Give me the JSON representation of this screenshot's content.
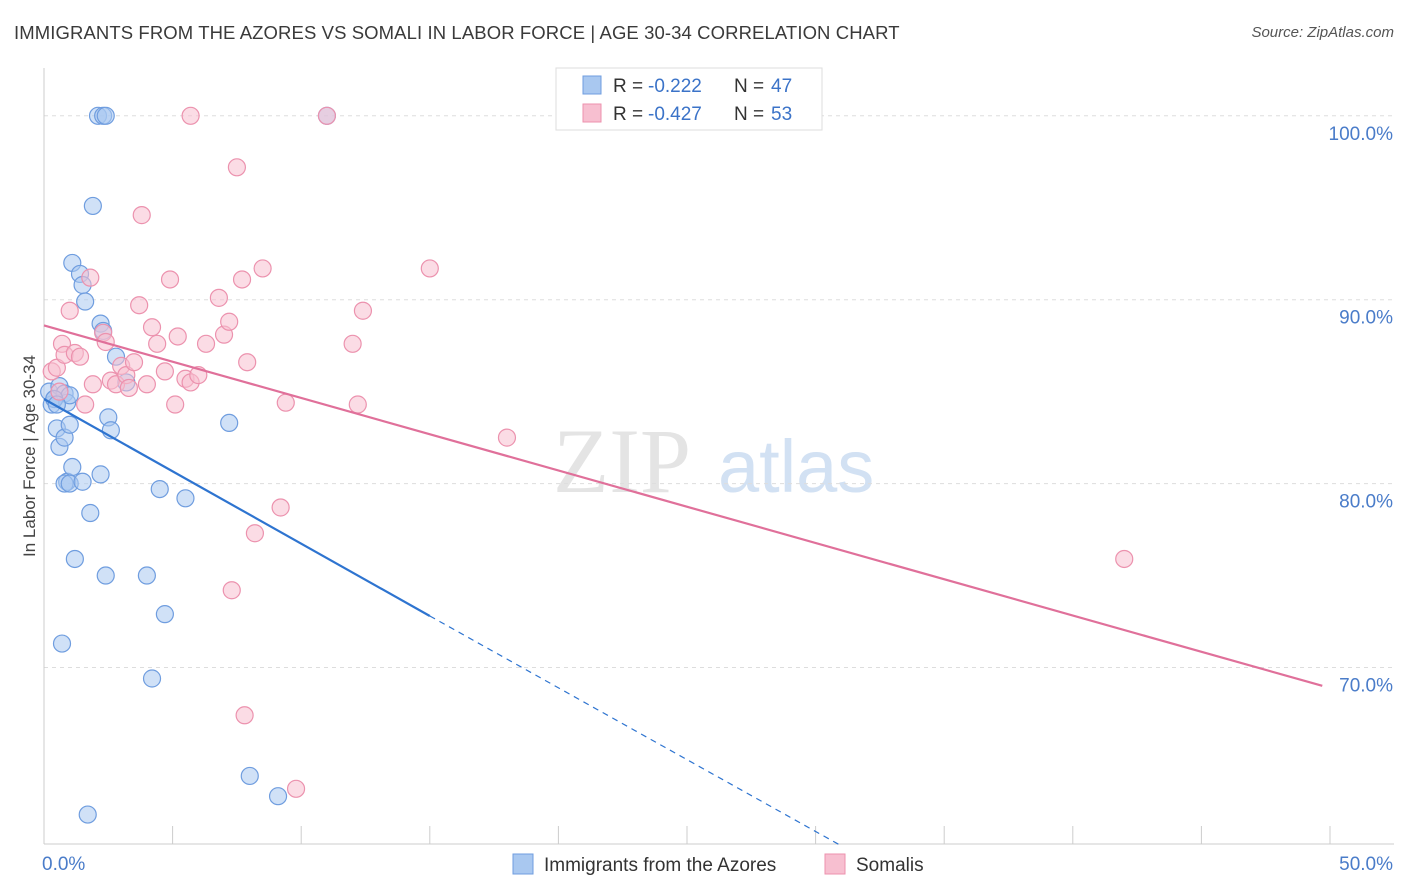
{
  "header": {
    "title": "IMMIGRANTS FROM THE AZORES VS SOMALI IN LABOR FORCE | AGE 30-34 CORRELATION CHART",
    "source": "Source: ZipAtlas.com"
  },
  "watermark": {
    "zip": "ZIP",
    "atlas": "atlas"
  },
  "colors": {
    "blue_fill": "#a9c8f0",
    "blue_stroke": "#6f9ddf",
    "blue_line": "#2e74d0",
    "pink_fill": "#f7bfd0",
    "pink_stroke": "#ec92ae",
    "pink_line": "#e0709a",
    "grid": "#dddddd",
    "tick_text": "#4a7cc9"
  },
  "legend": {
    "rows": [
      {
        "r_label": "R = ",
        "r_value": "-0.222",
        "n_label": "N = ",
        "n_value": "47"
      },
      {
        "r_label": "R = ",
        "r_value": "-0.427",
        "n_label": "N = ",
        "n_value": "53"
      }
    ]
  },
  "chart_data": {
    "type": "scatter",
    "title": "IMMIGRANTS FROM THE AZORES VS SOMALI IN LABOR FORCE | AGE 30-34 CORRELATION CHART",
    "xlabel": "",
    "ylabel": "In Labor Force | Age 30-34",
    "xlim": [
      0,
      50
    ],
    "ylim": [
      60.4,
      102.6
    ],
    "x_tick_labels": [
      "0.0%",
      "50.0%"
    ],
    "y_ticks": [
      70,
      80,
      90,
      100
    ],
    "y_tick_labels": [
      "70.0%",
      "80.0%",
      "90.0%",
      "100.0%"
    ],
    "series": [
      {
        "name": "Immigrants from the Azores",
        "R": -0.222,
        "N": 47,
        "trend": {
          "x0": 0,
          "y0": 84.6,
          "x1": 15,
          "y1": 72.8,
          "dash_to_x": 31,
          "dash_to_y": 60.3
        },
        "points": [
          [
            0.2,
            85.0
          ],
          [
            0.3,
            84.3
          ],
          [
            0.4,
            84.6
          ],
          [
            0.5,
            83.0
          ],
          [
            0.6,
            85.3
          ],
          [
            0.8,
            84.9
          ],
          [
            0.9,
            84.4
          ],
          [
            0.6,
            82.0
          ],
          [
            0.8,
            82.5
          ],
          [
            0.9,
            80.1
          ],
          [
            0.8,
            80.0
          ],
          [
            1.0,
            83.2
          ],
          [
            1.1,
            80.9
          ],
          [
            1.0,
            80.0
          ],
          [
            1.5,
            80.1
          ],
          [
            1.2,
            75.9
          ],
          [
            0.7,
            71.3
          ],
          [
            1.1,
            92.0
          ],
          [
            1.4,
            91.4
          ],
          [
            1.5,
            90.8
          ],
          [
            1.6,
            89.9
          ],
          [
            1.8,
            78.4
          ],
          [
            1.7,
            62.0
          ],
          [
            1.9,
            95.1
          ],
          [
            2.1,
            100.0
          ],
          [
            2.3,
            100.0
          ],
          [
            2.4,
            100.0
          ],
          [
            2.2,
            80.5
          ],
          [
            2.2,
            88.7
          ],
          [
            2.3,
            88.3
          ],
          [
            2.4,
            75.0
          ],
          [
            2.5,
            83.6
          ],
          [
            2.6,
            82.9
          ],
          [
            2.8,
            86.9
          ],
          [
            3.2,
            85.5
          ],
          [
            1.0,
            84.8
          ],
          [
            4.0,
            75.0
          ],
          [
            4.2,
            69.4
          ],
          [
            4.5,
            79.7
          ],
          [
            4.7,
            72.9
          ],
          [
            5.5,
            79.2
          ],
          [
            7.2,
            83.3
          ],
          [
            8.0,
            64.1
          ],
          [
            9.1,
            63.0
          ],
          [
            11.0,
            100.0
          ],
          [
            0.4,
            84.6
          ],
          [
            0.5,
            84.3
          ]
        ]
      },
      {
        "name": "Somalis",
        "R": -0.427,
        "N": 53,
        "trend": {
          "x0": 0,
          "y0": 88.6,
          "x1": 49.7,
          "y1": 69.0
        },
        "points": [
          [
            0.3,
            86.1
          ],
          [
            0.5,
            86.3
          ],
          [
            0.6,
            85.0
          ],
          [
            0.7,
            87.6
          ],
          [
            0.8,
            87.0
          ],
          [
            1.0,
            89.4
          ],
          [
            1.2,
            87.1
          ],
          [
            1.4,
            86.9
          ],
          [
            1.6,
            84.3
          ],
          [
            1.8,
            91.2
          ],
          [
            1.9,
            85.4
          ],
          [
            2.3,
            88.2
          ],
          [
            2.4,
            87.7
          ],
          [
            2.6,
            85.6
          ],
          [
            2.8,
            85.4
          ],
          [
            3.0,
            86.4
          ],
          [
            3.2,
            85.9
          ],
          [
            3.3,
            85.2
          ],
          [
            3.5,
            86.6
          ],
          [
            3.7,
            89.7
          ],
          [
            3.8,
            94.6
          ],
          [
            4.0,
            85.4
          ],
          [
            4.2,
            88.5
          ],
          [
            4.4,
            87.6
          ],
          [
            4.7,
            86.1
          ],
          [
            4.9,
            91.1
          ],
          [
            5.1,
            84.3
          ],
          [
            5.2,
            88.0
          ],
          [
            5.5,
            85.7
          ],
          [
            5.7,
            85.5
          ],
          [
            6.0,
            85.9
          ],
          [
            6.3,
            87.6
          ],
          [
            6.8,
            90.1
          ],
          [
            7.0,
            88.1
          ],
          [
            7.2,
            88.8
          ],
          [
            7.5,
            97.2
          ],
          [
            7.7,
            91.1
          ],
          [
            7.9,
            86.6
          ],
          [
            8.2,
            77.3
          ],
          [
            8.5,
            91.7
          ],
          [
            9.2,
            78.7
          ],
          [
            9.4,
            84.4
          ],
          [
            5.7,
            100.0
          ],
          [
            7.3,
            74.2
          ],
          [
            7.8,
            67.4
          ],
          [
            9.8,
            63.4
          ],
          [
            11.0,
            100.0
          ],
          [
            12.0,
            87.6
          ],
          [
            12.2,
            84.3
          ],
          [
            12.4,
            89.4
          ],
          [
            15.0,
            91.7
          ],
          [
            18.0,
            82.5
          ],
          [
            42.0,
            75.9
          ]
        ]
      }
    ],
    "legend_bottom": [
      "Immigrants from the Azores",
      "Somalis"
    ]
  }
}
